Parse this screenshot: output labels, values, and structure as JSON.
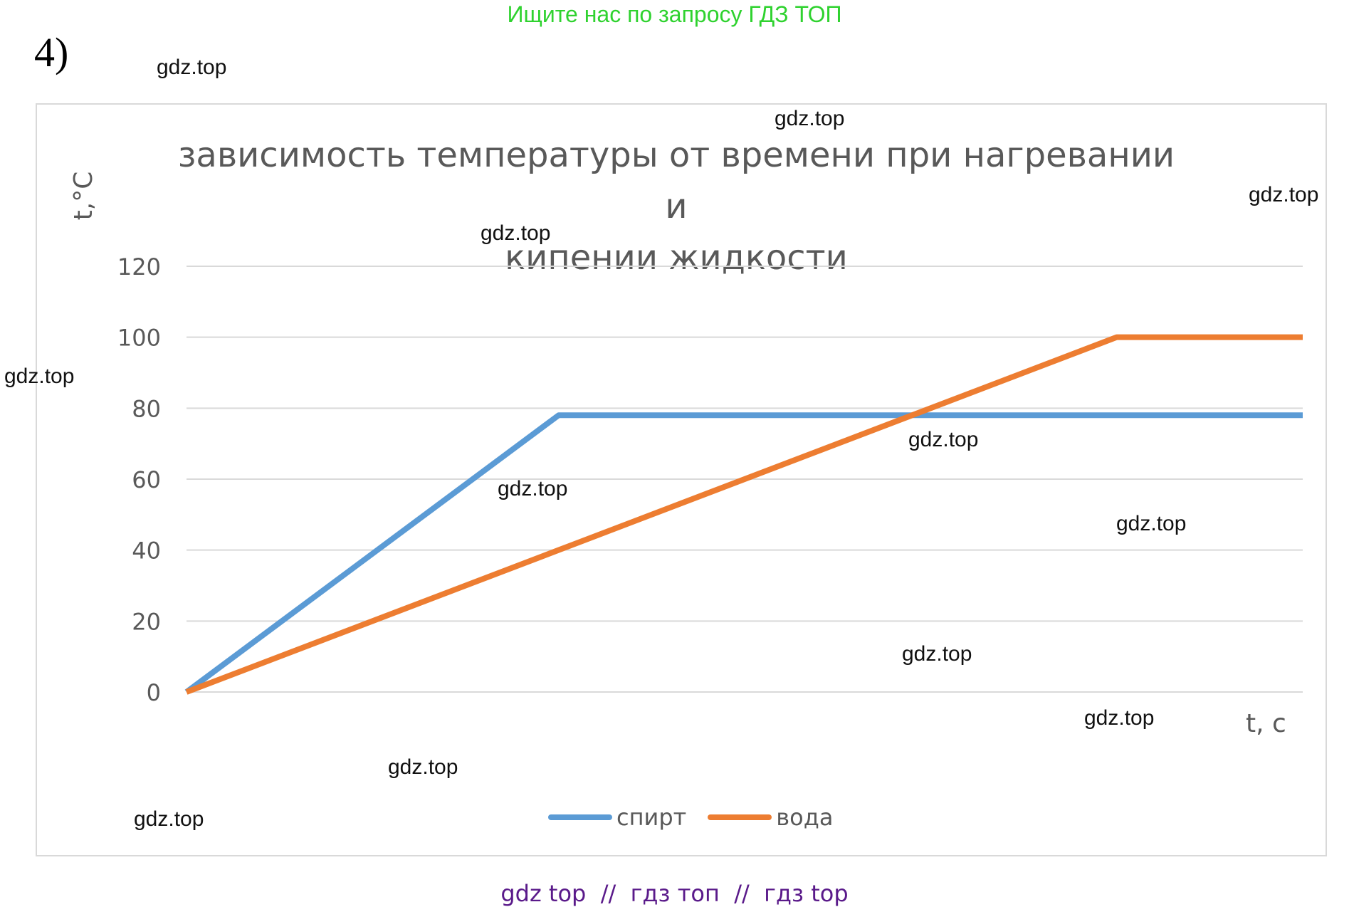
{
  "banner": "Ищите нас по запросу ГДЗ ТОП",
  "task_number": "4)",
  "watermarks": [
    "gdz.top",
    "gdz.top",
    "gdz.top",
    "gdz.top",
    "gdz.top",
    "gdz.top",
    "gdz.top",
    "gdz.top",
    "gdz.top",
    "gdz.top",
    "gdz.top",
    "gdz.top"
  ],
  "footer": "gdz top  //  гдз топ  //  гдз top",
  "colors": {
    "spirt": "#5b9bd5",
    "voda": "#ed7d31",
    "grid": "#d9d9d9",
    "text": "#595959"
  },
  "chart_data": {
    "type": "line",
    "title_line1": "зависимость температуры от времени при нагревании и",
    "title_line2": "кипении жидкости",
    "ylabel": "t,°C",
    "xlabel": "t, с",
    "ylim": [
      0,
      120
    ],
    "yticks": [
      "0",
      "20",
      "40",
      "60",
      "80",
      "100",
      "120"
    ],
    "grid": true,
    "legend_position": "bottom",
    "series": [
      {
        "name": "спирт",
        "x": [
          0,
          1,
          3
        ],
        "y": [
          0,
          78,
          78
        ]
      },
      {
        "name": "вода",
        "x": [
          0,
          1,
          2.5,
          3
        ],
        "y": [
          0,
          40,
          100,
          100
        ]
      }
    ]
  }
}
